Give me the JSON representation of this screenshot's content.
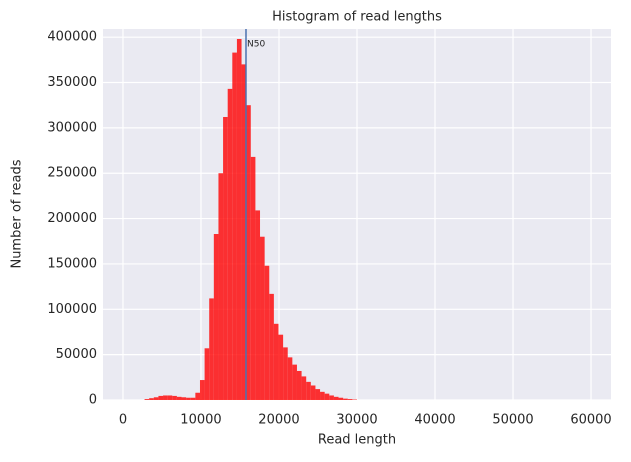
{
  "chart_data": {
    "type": "histogram",
    "title": "Histogram of read lengths",
    "x_label": "Read length",
    "y_label": "Number of reads",
    "bins": [
      400,
      992,
      1584,
      2176,
      2768,
      3360,
      3952,
      4544,
      5136,
      5728,
      6320,
      6912,
      7504,
      8096,
      8688,
      9280,
      9872,
      10464,
      11056,
      11648,
      12240,
      12832,
      13424,
      14016,
      14608,
      15200,
      15792,
      16384,
      16976,
      17568,
      18160,
      18752,
      19344,
      19936,
      20528,
      21120,
      21712,
      22304,
      22896,
      23488,
      24080,
      24672,
      25264,
      25856,
      26448,
      27040,
      27632,
      28224,
      28816,
      29408,
      30000,
      30592,
      31184,
      31776,
      32368,
      32960,
      33552,
      34144,
      34736,
      35328,
      35920,
      36512,
      37104,
      37696,
      38288,
      38880,
      39472,
      40064,
      40656,
      41248,
      41840,
      42432,
      43024,
      43616,
      44208,
      44800,
      45392,
      45984,
      46576,
      47168,
      47760,
      48352,
      48944,
      49536,
      50128,
      50720,
      51312,
      51904,
      52496,
      53088,
      53680,
      54272,
      54864,
      55456,
      56048,
      56640,
      57232,
      57824,
      58416,
      59008,
      59600
    ],
    "values": [
      0,
      0,
      0,
      0,
      1000,
      2000,
      3000,
      4500,
      5000,
      5000,
      4500,
      3500,
      3000,
      2500,
      2500,
      8000,
      22000,
      57000,
      112000,
      183000,
      250000,
      312000,
      343000,
      383000,
      398000,
      370000,
      325000,
      268000,
      209000,
      180000,
      148000,
      117000,
      84000,
      72000,
      58000,
      47000,
      39000,
      32000,
      26000,
      20000,
      16000,
      12000,
      9000,
      7000,
      5000,
      3500,
      2500,
      1500,
      1000,
      500,
      0,
      0,
      0,
      0,
      0,
      0,
      0,
      0,
      0,
      0,
      0,
      0,
      0,
      0,
      0,
      0,
      0,
      0,
      0,
      0,
      0,
      0,
      0,
      0,
      0,
      0,
      0,
      0,
      0,
      0,
      0,
      0,
      0,
      0,
      0,
      0,
      0,
      0,
      0,
      0,
      0,
      0,
      0,
      0,
      0,
      0,
      0,
      0,
      0,
      0
    ],
    "color": "#ff0000",
    "xlim": [
      -2560,
      62560
    ],
    "xticks": [
      0,
      10000,
      20000,
      30000,
      40000,
      50000,
      60000
    ],
    "ylim": [
      0,
      409000
    ],
    "yticks": [
      0,
      50000,
      100000,
      150000,
      200000,
      250000,
      300000,
      350000,
      400000
    ],
    "grid": true,
    "n50": {
      "x": 15770,
      "label": "N50",
      "color": "#4c72b0"
    }
  }
}
